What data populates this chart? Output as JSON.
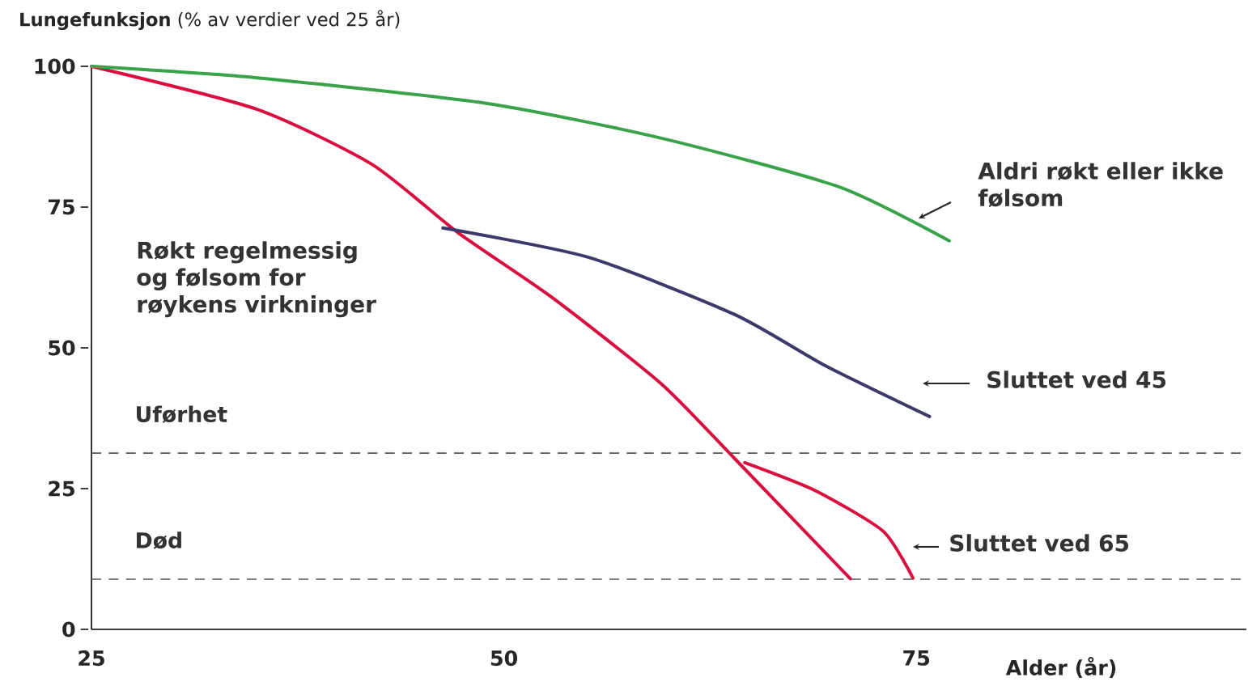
{
  "chart_data": {
    "type": "line",
    "ylabel": "**Lungefunksjon** (% av verdier ved 25 år)",
    "xlabel": "Alder (år)",
    "xlim": [
      25,
      95
    ],
    "ylim": [
      0,
      100
    ],
    "xticks": [
      25,
      50,
      75
    ],
    "yticks": [
      0,
      25,
      50,
      75,
      100
    ],
    "marker": "none",
    "line_style": "solid",
    "series": [
      {
        "name": "Røkt regelmessig og følsom for røykens virkninger",
        "color": "#d9103f",
        "x": [
          25,
          35,
          42,
          47.2,
          52.9,
          59.5,
          63.9,
          71
        ],
        "values": [
          100,
          92.4,
          82.6,
          70.5,
          59,
          43.7,
          30.6,
          9
        ]
      },
      {
        "name": "Aldri røkt eller ikke følsom",
        "color": "#3aa24a",
        "x": [
          25,
          34.9,
          49,
          59.6,
          70.3,
          77
        ],
        "values": [
          100,
          98,
          93.4,
          87.2,
          78.6,
          69
        ]
      },
      {
        "name": "Sluttet ved 45",
        "color": "#3c3a6a",
        "x": [
          46.3,
          55.1,
          64,
          69.5,
          75.8
        ],
        "values": [
          71.3,
          66.1,
          55.9,
          46.8,
          37.8
        ]
      },
      {
        "name": "Sluttet ved 65",
        "color": "#d9103f",
        "x": [
          64.6,
          68.9,
          73,
          74.8
        ],
        "values": [
          29.6,
          24.6,
          17.4,
          9.1
        ]
      }
    ],
    "ref_lines": [
      {
        "axis": "y",
        "value": 31.3,
        "label": "Uførhet",
        "color": "#555555",
        "line_style": "dashed"
      },
      {
        "axis": "y",
        "value": 8.9,
        "label": "Død",
        "color": "#555555",
        "line_style": "dashed"
      }
    ]
  }
}
